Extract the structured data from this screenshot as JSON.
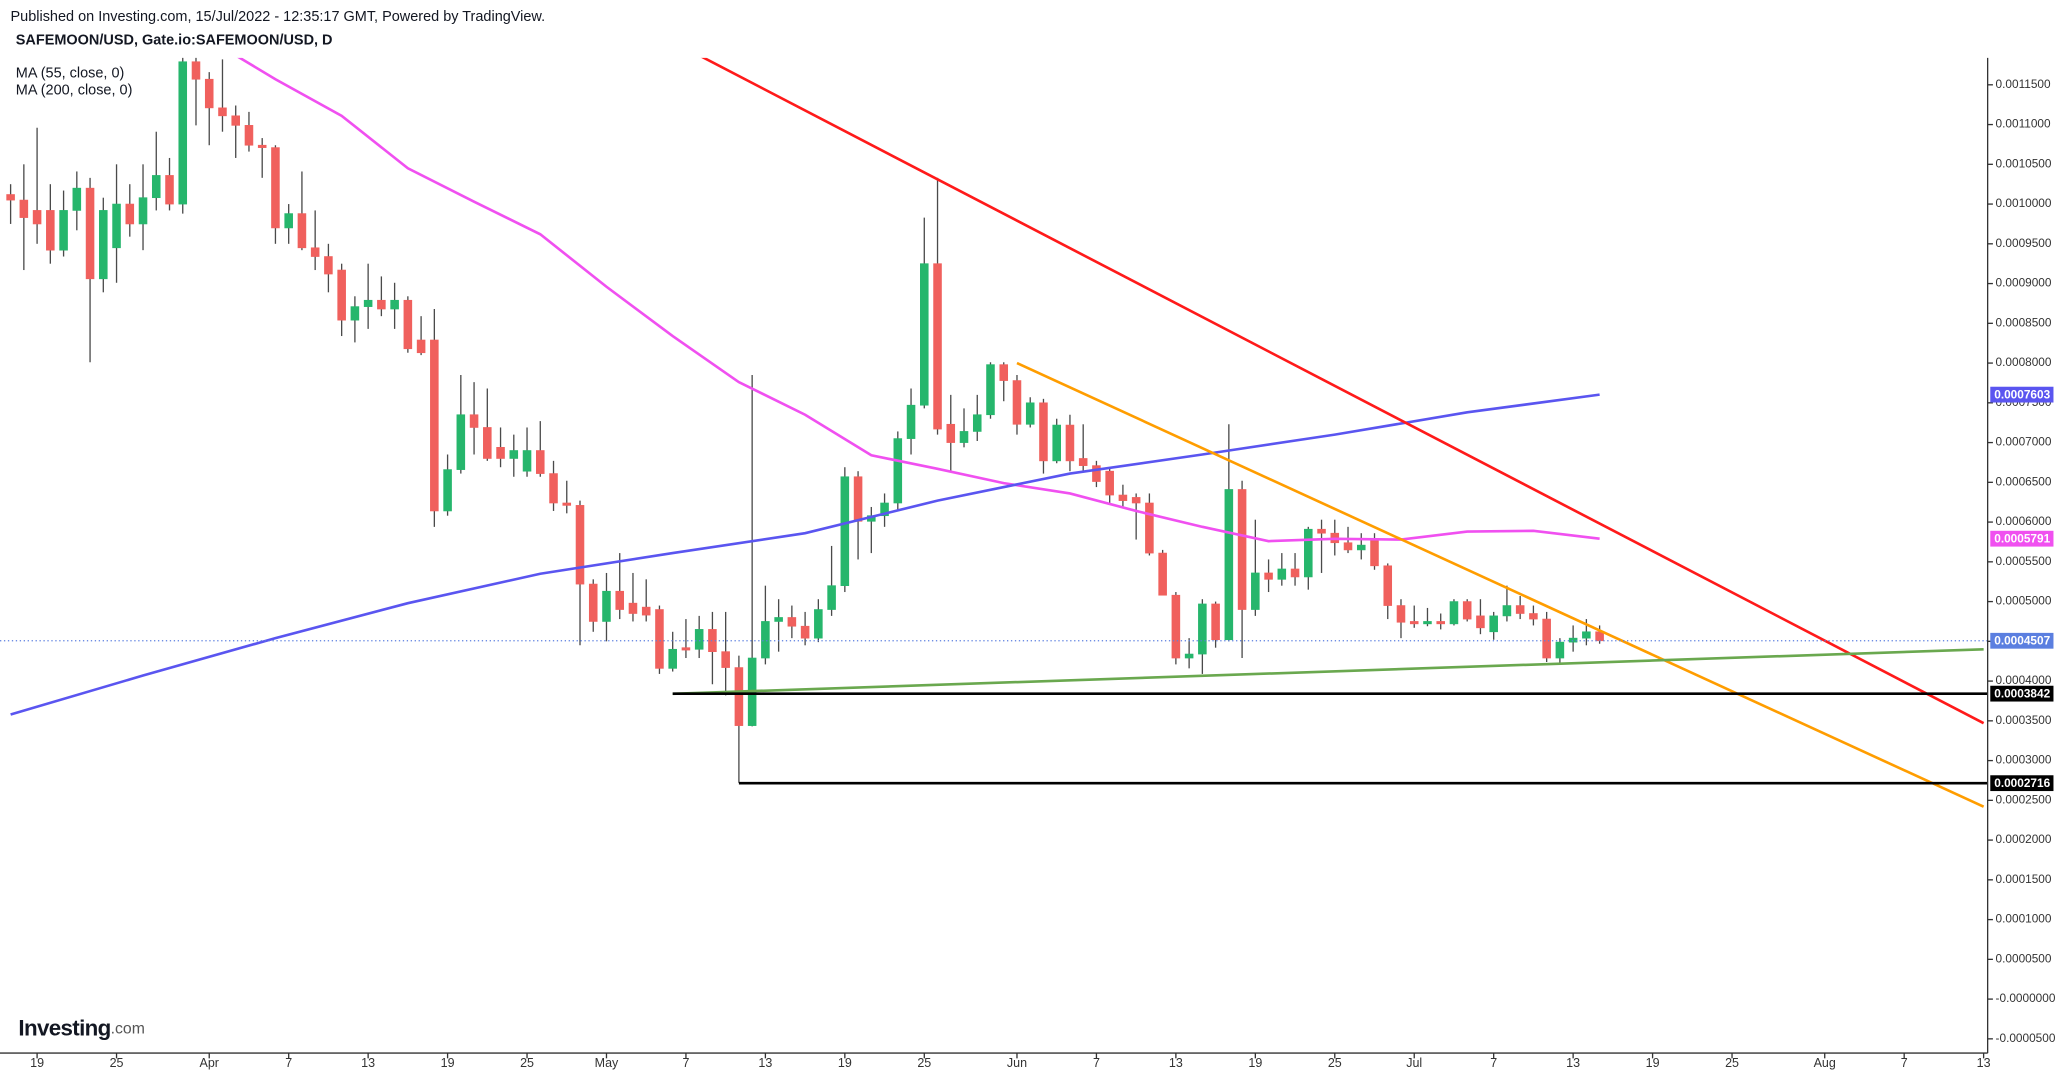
{
  "chart_data": {
    "type": "candlestick",
    "source": "Published on Investing.com, 15/Jul/2022 - 12:35:17 GMT, Powered by TradingView.",
    "title": "SAFEMOON/USD, Gate.io:SAFEMOON/USD, D",
    "logo": {
      "main": "Investing",
      "suffix": ".com"
    },
    "legend": "top-left",
    "grid": false,
    "up_color": "#26b66c",
    "down_color": "#f0605d",
    "wick_color": "#4a4a4a",
    "last_price_color": "#5b7fe0",
    "x": [
      "2022-03-17",
      "2022-03-18",
      "2022-03-19",
      "2022-03-20",
      "2022-03-21",
      "2022-03-22",
      "2022-03-23",
      "2022-03-24",
      "2022-03-25",
      "2022-03-26",
      "2022-03-27",
      "2022-03-28",
      "2022-03-29",
      "2022-03-30",
      "2022-03-31",
      "2022-04-01",
      "2022-04-02",
      "2022-04-03",
      "2022-04-04",
      "2022-04-05",
      "2022-04-06",
      "2022-04-07",
      "2022-04-08",
      "2022-04-09",
      "2022-04-10",
      "2022-04-11",
      "2022-04-12",
      "2022-04-13",
      "2022-04-14",
      "2022-04-15",
      "2022-04-16",
      "2022-04-17",
      "2022-04-18",
      "2022-04-19",
      "2022-04-20",
      "2022-04-21",
      "2022-04-22",
      "2022-04-23",
      "2022-04-24",
      "2022-04-25",
      "2022-04-26",
      "2022-04-27",
      "2022-04-28",
      "2022-04-29",
      "2022-04-30",
      "2022-05-01",
      "2022-05-02",
      "2022-05-03",
      "2022-05-04",
      "2022-05-05",
      "2022-05-06",
      "2022-05-07",
      "2022-05-08",
      "2022-05-09",
      "2022-05-10",
      "2022-05-11",
      "2022-05-12",
      "2022-05-13",
      "2022-05-14",
      "2022-05-15",
      "2022-05-16",
      "2022-05-17",
      "2022-05-18",
      "2022-05-19",
      "2022-05-20",
      "2022-05-21",
      "2022-05-22",
      "2022-05-23",
      "2022-05-24",
      "2022-05-25",
      "2022-05-26",
      "2022-05-27",
      "2022-05-28",
      "2022-05-29",
      "2022-05-30",
      "2022-05-31",
      "2022-06-01",
      "2022-06-02",
      "2022-06-03",
      "2022-06-04",
      "2022-06-05",
      "2022-06-06",
      "2022-06-07",
      "2022-06-08",
      "2022-06-09",
      "2022-06-10",
      "2022-06-11",
      "2022-06-12",
      "2022-06-13",
      "2022-06-14",
      "2022-06-15",
      "2022-06-16",
      "2022-06-17",
      "2022-06-18",
      "2022-06-19",
      "2022-06-20",
      "2022-06-21",
      "2022-06-22",
      "2022-06-23",
      "2022-06-24",
      "2022-06-25",
      "2022-06-26",
      "2022-06-27",
      "2022-06-28",
      "2022-06-29",
      "2022-06-30",
      "2022-07-01",
      "2022-07-02",
      "2022-07-03",
      "2022-07-04",
      "2022-07-05",
      "2022-07-06",
      "2022-07-07",
      "2022-07-08",
      "2022-07-09",
      "2022-07-10",
      "2022-07-11",
      "2022-07-12",
      "2022-07-13",
      "2022-07-14",
      "2022-07-15"
    ],
    "open": [
      0.001012,
      0.001005,
      0.000992,
      0.000992,
      0.000942,
      0.000992,
      0.00102,
      0.000906,
      0.000945,
      0.001,
      0.000975,
      0.001008,
      0.001036,
      0.001,
      0.001179,
      0.001157,
      0.001121,
      0.001111,
      0.001099,
      0.001074,
      0.001071,
      0.00097,
      0.000988,
      0.000945,
      0.000934,
      0.000917,
      0.000854,
      0.000871,
      0.000879,
      0.000868,
      0.000879,
      0.000829,
      0.000829,
      0.000614,
      0.000666,
      0.000735,
      0.000719,
      0.000694,
      0.00068,
      0.000664,
      0.00069,
      0.000661,
      0.000624,
      0.000621,
      0.000522,
      0.000475,
      0.000513,
      0.000498,
      0.000493,
      0.00049,
      0.000416,
      0.000442,
      0.00044,
      0.000465,
      0.000437,
      0.000417,
      0.000344,
      0.000429,
      0.000475,
      0.00048,
      0.000469,
      0.000454,
      0.00049,
      0.00052,
      0.000657,
      0.000601,
      0.000608,
      0.000624,
      0.000705,
      0.000747,
      0.000925,
      0.000723,
      0.0007,
      0.000714,
      0.000735,
      0.000798,
      0.000778,
      0.000723,
      0.00075,
      0.000677,
      0.000722,
      0.00068,
      0.000671,
      0.000664,
      0.000634,
      0.000631,
      0.000624,
      0.000561,
      0.000508,
      0.000429,
      0.000434,
      0.000497,
      0.000452,
      0.000641,
      0.00049,
      0.000536,
      0.000528,
      0.000541,
      0.000531,
      0.000591,
      0.000586,
      0.000574,
      0.000565,
      0.000578,
      0.000545,
      0.000495,
      0.000475,
      0.000472,
      0.000475,
      0.000472,
      0.0005,
      0.000482,
      0.000462,
      0.000482,
      0.000495,
      0.000485,
      0.000478,
      0.000429,
      0.000449,
      0.000454,
      0.000462
    ],
    "high": [
      0.001025,
      0.00105,
      0.001096,
      0.001025,
      0.001017,
      0.001041,
      0.001033,
      0.001008,
      0.00105,
      0.001025,
      0.00105,
      0.001091,
      0.001058,
      0.00119,
      0.001207,
      0.001166,
      0.001182,
      0.001124,
      0.001116,
      0.001083,
      0.001074,
      0.001,
      0.001041,
      0.000992,
      0.00095,
      0.000925,
      0.000884,
      0.000925,
      0.000909,
      0.000901,
      0.000884,
      0.000859,
      0.000868,
      0.000685,
      0.000785,
      0.000776,
      0.000768,
      0.000719,
      0.00071,
      0.000719,
      0.000727,
      0.000677,
      0.000652,
      0.000627,
      0.000528,
      0.000536,
      0.000561,
      0.000536,
      0.000528,
      0.000495,
      0.000462,
      0.000478,
      0.000482,
      0.000487,
      0.000487,
      0.000432,
      0.000785,
      0.00052,
      0.000503,
      0.000495,
      0.000487,
      0.000503,
      0.00057,
      0.000669,
      0.000664,
      0.000619,
      0.000636,
      0.000714,
      0.000768,
      0.000983,
      0.001033,
      0.00076,
      0.000743,
      0.00076,
      0.000801,
      0.000801,
      0.000785,
      0.000757,
      0.000755,
      0.00073,
      0.000735,
      0.000723,
      0.000677,
      0.000669,
      0.000647,
      0.000636,
      0.000636,
      0.000565,
      0.000512,
      0.000454,
      0.000503,
      0.0005,
      0.000723,
      0.000652,
      0.000603,
      0.000553,
      0.000561,
      0.000561,
      0.000594,
      0.000603,
      0.000603,
      0.000594,
      0.000586,
      0.000586,
      0.000548,
      0.000503,
      0.000495,
      0.000492,
      0.000485,
      0.000503,
      0.000503,
      0.000503,
      0.000487,
      0.00052,
      0.000507,
      0.000495,
      0.000487,
      0.000454,
      0.00047,
      0.000478,
      0.00047
    ],
    "low": [
      0.000975,
      0.000917,
      0.00095,
      0.000925,
      0.000934,
      0.000967,
      0.000801,
      0.000889,
      0.000901,
      0.000959,
      0.000942,
      0.000992,
      0.000992,
      0.000988,
      0.001099,
      0.001074,
      0.001091,
      0.001058,
      0.001066,
      0.001033,
      0.00095,
      0.00095,
      0.000942,
      0.000917,
      0.000889,
      0.000834,
      0.000826,
      0.000843,
      0.000859,
      0.000843,
      0.000813,
      0.00081,
      0.000594,
      0.000608,
      0.000661,
      0.000685,
      0.000677,
      0.000669,
      0.000657,
      0.000657,
      0.000657,
      0.000614,
      0.000611,
      0.000445,
      0.000462,
      0.00045,
      0.000478,
      0.000475,
      0.000475,
      0.000409,
      0.000412,
      0.000429,
      0.000429,
      0.000396,
      0.000382,
      0.000272,
      0.000343,
      0.000421,
      0.000437,
      0.000454,
      0.000445,
      0.000449,
      0.000482,
      0.000512,
      0.000553,
      0.000561,
      0.000594,
      0.000614,
      0.000685,
      0.000743,
      0.00071,
      0.000664,
      0.000694,
      0.000702,
      0.00073,
      0.000752,
      0.00071,
      0.000719,
      0.000661,
      0.000674,
      0.000664,
      0.000664,
      0.000644,
      0.000624,
      0.000619,
      0.000578,
      0.000558,
      0.000508,
      0.000421,
      0.000416,
      0.000409,
      0.000442,
      0.00045,
      0.000429,
      0.000482,
      0.000512,
      0.00052,
      0.00052,
      0.000515,
      0.000536,
      0.000558,
      0.000561,
      0.000553,
      0.00054,
      0.000478,
      0.000454,
      0.000467,
      0.000469,
      0.000465,
      0.00047,
      0.000475,
      0.000459,
      0.000452,
      0.000475,
      0.000478,
      0.00047,
      0.000424,
      0.000421,
      0.000437,
      0.000445,
      0.000447
    ],
    "close": [
      0.001005,
      0.000983,
      0.000975,
      0.000942,
      0.000992,
      0.00102,
      0.000906,
      0.000992,
      0.001,
      0.000975,
      0.001008,
      0.001036,
      0.001,
      0.001179,
      0.001157,
      0.001121,
      0.001111,
      0.001099,
      0.001074,
      0.001071,
      0.00097,
      0.000988,
      0.000945,
      0.000934,
      0.000912,
      0.000854,
      0.000871,
      0.000879,
      0.000868,
      0.000879,
      0.000818,
      0.000813,
      0.000614,
      0.000666,
      0.000735,
      0.000719,
      0.00068,
      0.00068,
      0.00069,
      0.00069,
      0.000661,
      0.000624,
      0.000621,
      0.000522,
      0.000475,
      0.000513,
      0.00049,
      0.000485,
      0.000483,
      0.000416,
      0.00044,
      0.000439,
      0.000465,
      0.000437,
      0.000417,
      0.000344,
      0.000429,
      0.000475,
      0.00048,
      0.000469,
      0.000454,
      0.00049,
      0.00052,
      0.000657,
      0.000601,
      0.000608,
      0.000624,
      0.000705,
      0.000747,
      0.000925,
      0.000717,
      0.0007,
      0.000714,
      0.000735,
      0.000798,
      0.000778,
      0.000723,
      0.00075,
      0.000677,
      0.000722,
      0.000677,
      0.000671,
      0.000651,
      0.000634,
      0.000627,
      0.000624,
      0.000561,
      0.000508,
      0.000429,
      0.000434,
      0.000497,
      0.000452,
      0.000641,
      0.00049,
      0.000536,
      0.000528,
      0.000541,
      0.000531,
      0.000591,
      0.000586,
      0.000574,
      0.000565,
      0.000571,
      0.000545,
      0.000495,
      0.000474,
      0.000472,
      0.000475,
      0.000472,
      0.0005,
      0.000478,
      0.000467,
      0.000482,
      0.000495,
      0.000485,
      0.000478,
      0.000429,
      0.000449,
      0.000454,
      0.000462,
      0.0004507
    ],
    "series": [
      {
        "name": "MA (55, close, 0)",
        "color": "#f050f0",
        "x": [
          "2022-04-03",
          "2022-04-06",
          "2022-04-11",
          "2022-04-16",
          "2022-04-21",
          "2022-04-26",
          "2022-05-01",
          "2022-05-06",
          "2022-05-11",
          "2022-05-16",
          "2022-05-21",
          "2022-05-26",
          "2022-05-31",
          "2022-06-05",
          "2022-06-10",
          "2022-06-15",
          "2022-06-20",
          "2022-06-25",
          "2022-06-30",
          "2022-07-05",
          "2022-07-10",
          "2022-07-15"
        ],
        "values": [
          0.001187,
          0.001157,
          0.001111,
          0.001045,
          0.001003,
          0.000962,
          0.000896,
          0.000834,
          0.000776,
          0.000735,
          0.000684,
          0.000667,
          0.000649,
          0.000636,
          0.000614,
          0.000594,
          0.000576,
          0.000579,
          0.000578,
          0.000588,
          0.000589,
          0.0005791
        ]
      },
      {
        "name": "MA (200, close, 0)",
        "color": "#5a55f0",
        "x": [
          "2022-03-17",
          "2022-03-27",
          "2022-04-06",
          "2022-04-16",
          "2022-04-26",
          "2022-05-06",
          "2022-05-16",
          "2022-05-26",
          "2022-06-05",
          "2022-06-15",
          "2022-06-25",
          "2022-07-05",
          "2022-07-15"
        ],
        "values": [
          0.000358,
          0.000407,
          0.000454,
          0.000498,
          0.000535,
          0.000561,
          0.000586,
          0.000627,
          0.000661,
          0.000685,
          0.00071,
          0.000738,
          0.0007603
        ]
      }
    ],
    "trend_lines": [
      {
        "color": "#ff1a1a",
        "x": [
          "2022-05-08",
          "2022-08-13"
        ],
        "values": [
          0.001187,
          0.000347
        ]
      },
      {
        "color": "#ff9d00",
        "x": [
          "2022-06-01",
          "2022-08-13"
        ],
        "values": [
          0.0008,
          0.000242
        ]
      },
      {
        "color": "#6aa84f",
        "x": [
          "2022-05-06",
          "2022-08-13"
        ],
        "values": [
          0.000384,
          0.00044
        ]
      }
    ],
    "horizontal_lines": [
      {
        "value": 0.0003842,
        "x": "2022-05-06",
        "color": "#000000"
      },
      {
        "value": 0.0002716,
        "x": "2022-05-11",
        "color": "#000000"
      }
    ],
    "xlim": [
      "2022-03-16",
      "2022-08-14"
    ],
    "xticks": [
      {
        "value": "2022-03-19",
        "label": "19"
      },
      {
        "value": "2022-03-25",
        "label": "25"
      },
      {
        "value": "2022-04-01",
        "label": "Apr"
      },
      {
        "value": "2022-04-07",
        "label": "7"
      },
      {
        "value": "2022-04-13",
        "label": "13"
      },
      {
        "value": "2022-04-19",
        "label": "19"
      },
      {
        "value": "2022-04-25",
        "label": "25"
      },
      {
        "value": "2022-05-01",
        "label": "May"
      },
      {
        "value": "2022-05-07",
        "label": "7"
      },
      {
        "value": "2022-05-13",
        "label": "13"
      },
      {
        "value": "2022-05-19",
        "label": "19"
      },
      {
        "value": "2022-05-25",
        "label": "25"
      },
      {
        "value": "2022-06-01",
        "label": "Jun"
      },
      {
        "value": "2022-06-07",
        "label": "7"
      },
      {
        "value": "2022-06-13",
        "label": "13"
      },
      {
        "value": "2022-06-19",
        "label": "19"
      },
      {
        "value": "2022-06-25",
        "label": "25"
      },
      {
        "value": "2022-07-01",
        "label": "Jul"
      },
      {
        "value": "2022-07-07",
        "label": "7"
      },
      {
        "value": "2022-07-13",
        "label": "13"
      },
      {
        "value": "2022-07-19",
        "label": "19"
      },
      {
        "value": "2022-07-25",
        "label": "25"
      },
      {
        "value": "2022-08-01",
        "label": "Aug"
      },
      {
        "value": "2022-08-07",
        "label": "7"
      },
      {
        "value": "2022-08-13",
        "label": "13"
      }
    ],
    "ylim": [
      -6.79e-05,
      0.0011838
    ],
    "yticks": [
      {
        "value": 0.00115,
        "label": "0.0011500"
      },
      {
        "value": 0.0011,
        "label": "0.0011000"
      },
      {
        "value": 0.00105,
        "label": "0.0010500"
      },
      {
        "value": 0.001,
        "label": "0.0010000"
      },
      {
        "value": 0.00095,
        "label": "0.0009500"
      },
      {
        "value": 0.0009,
        "label": "0.0009000"
      },
      {
        "value": 0.00085,
        "label": "0.0008500"
      },
      {
        "value": 0.0008,
        "label": "0.0008000"
      },
      {
        "value": 0.00075,
        "label": "0.0007500"
      },
      {
        "value": 0.0007,
        "label": "0.0007000"
      },
      {
        "value": 0.00065,
        "label": "0.0006500"
      },
      {
        "value": 0.0006,
        "label": "0.0006000"
      },
      {
        "value": 0.00055,
        "label": "0.0005500"
      },
      {
        "value": 0.0005,
        "label": "0.0005000"
      },
      {
        "value": 0.00045,
        "label": "0.0004500"
      },
      {
        "value": 0.0004,
        "label": "0.0004000"
      },
      {
        "value": 0.00035,
        "label": "0.0003500"
      },
      {
        "value": 0.0003,
        "label": "0.0003000"
      },
      {
        "value": 0.00025,
        "label": "0.0002500"
      },
      {
        "value": 0.0002,
        "label": "0.0002000"
      },
      {
        "value": 0.00015,
        "label": "0.0001500"
      },
      {
        "value": 0.0001,
        "label": "0.0001000"
      },
      {
        "value": 5e-05,
        "label": "0.0000500"
      },
      {
        "value": 0,
        "label": "-0.0000000"
      },
      {
        "value": -5e-05,
        "label": "-0.0000500"
      }
    ]
  }
}
